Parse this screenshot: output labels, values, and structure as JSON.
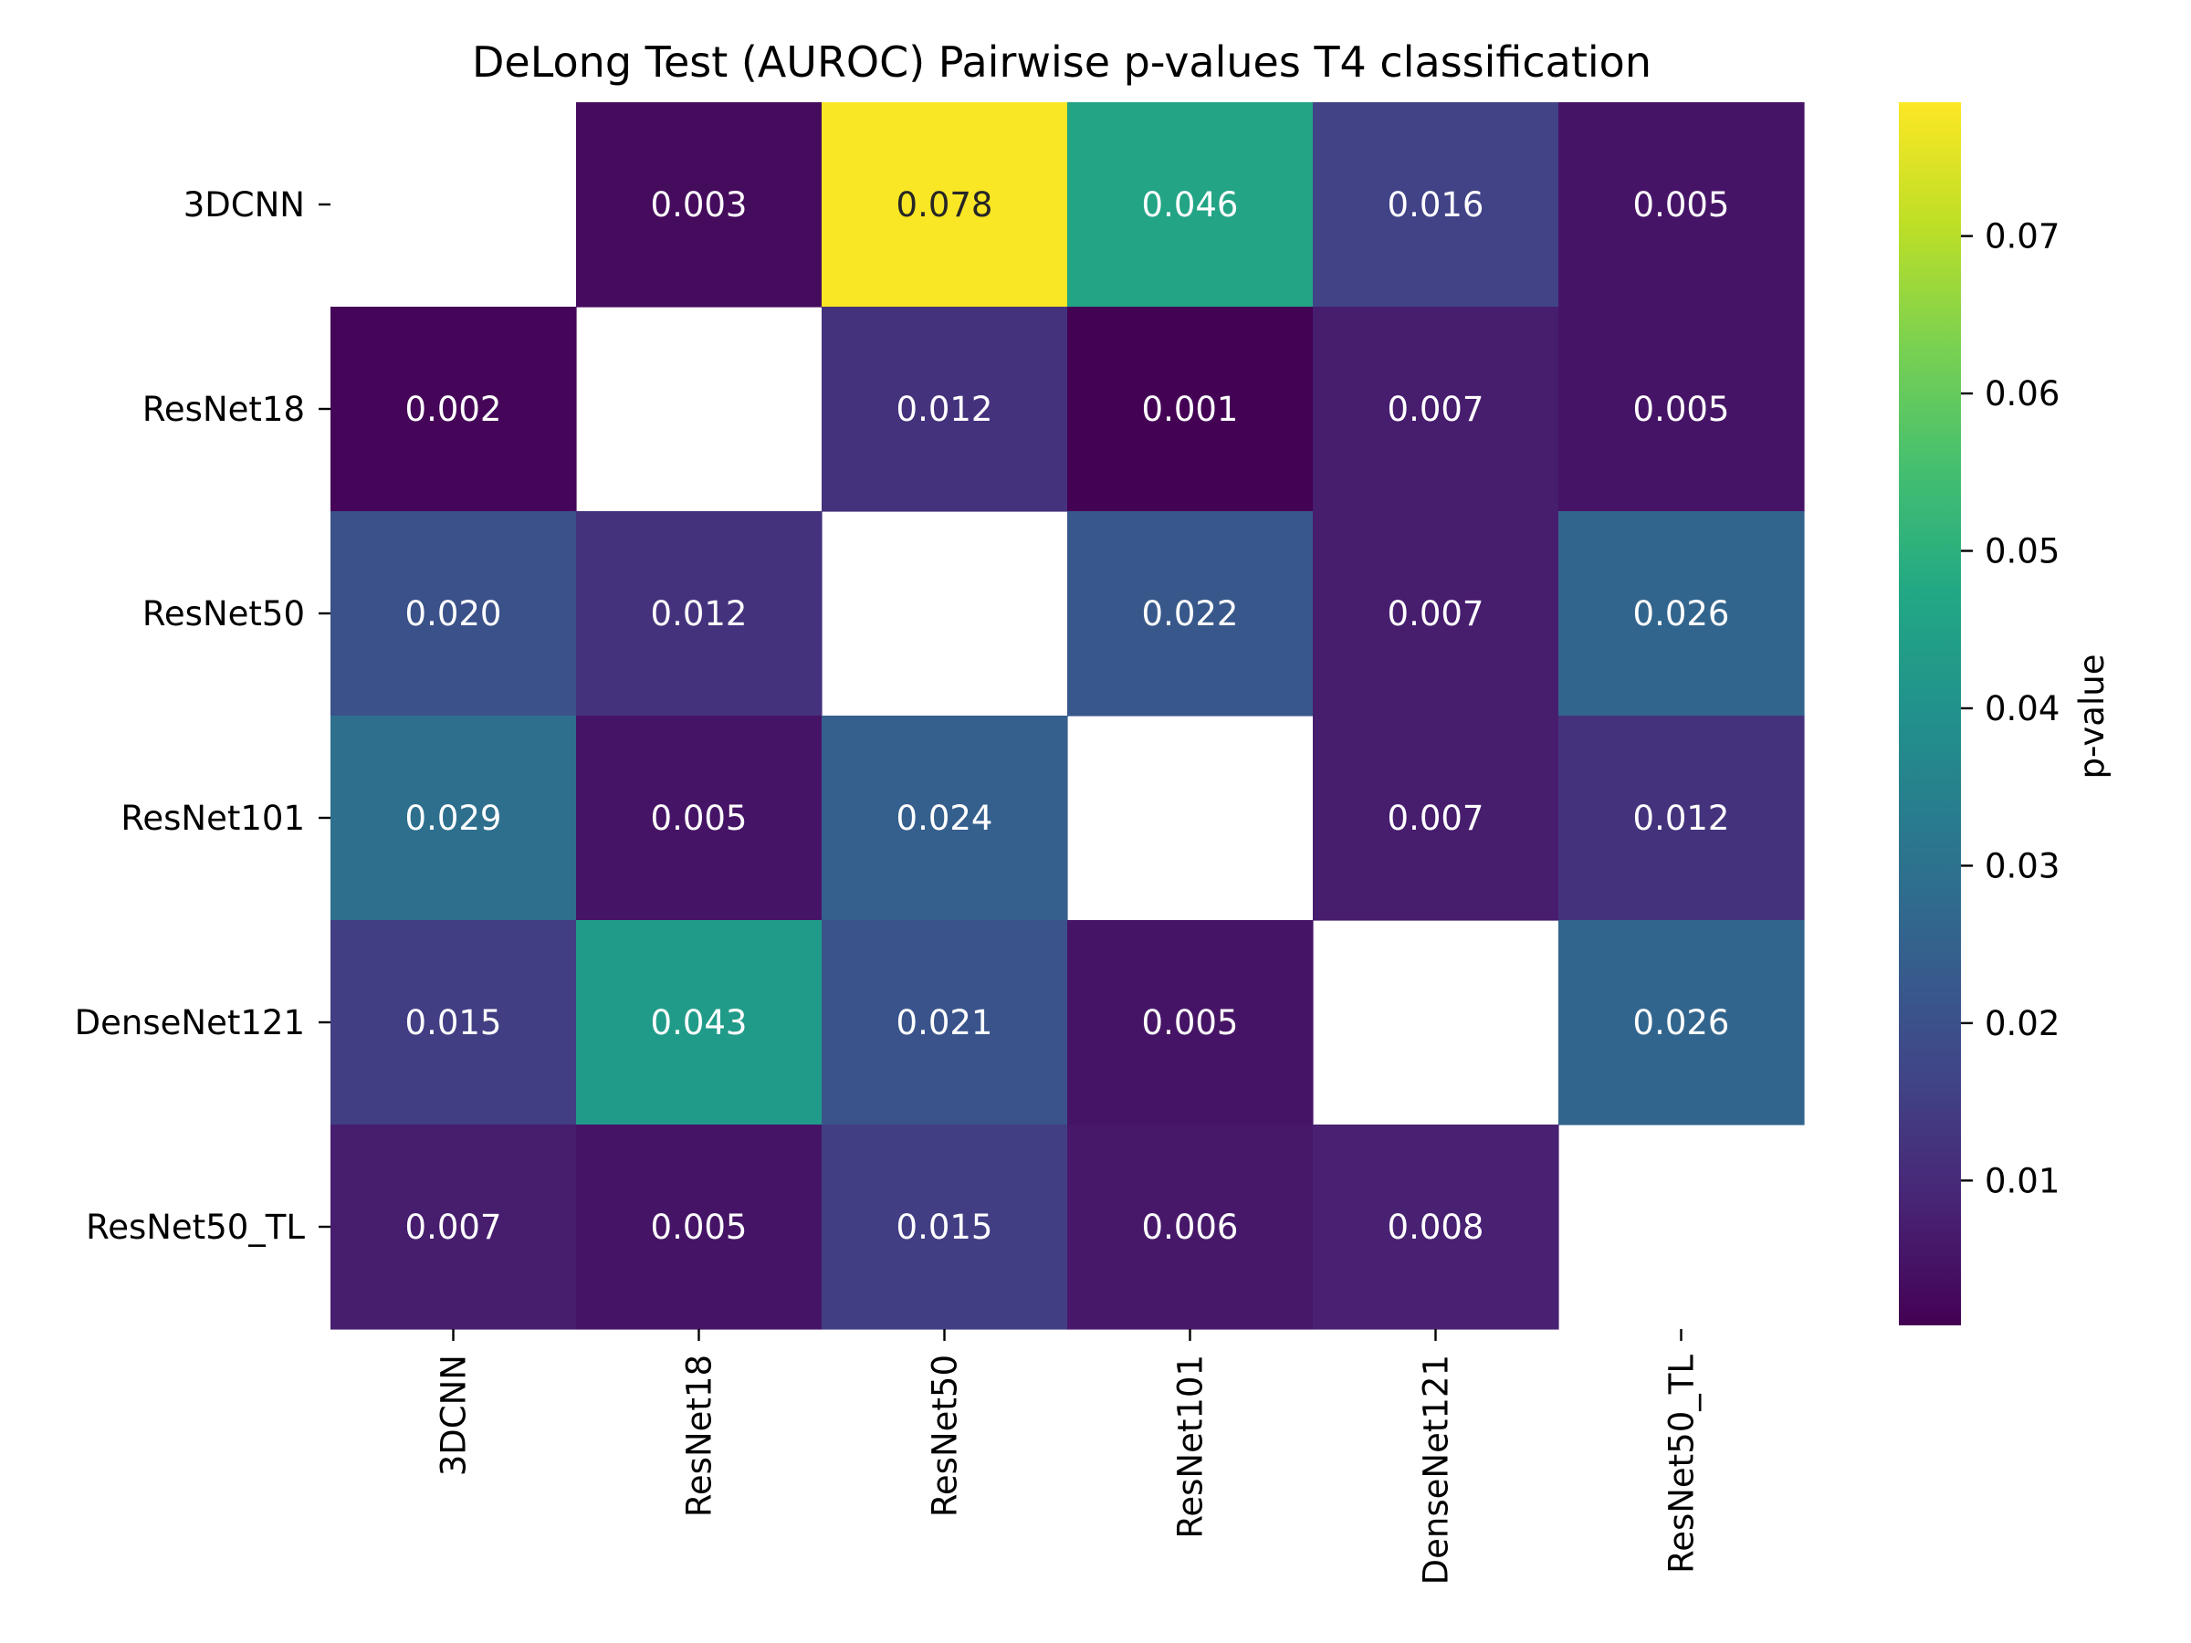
{
  "chart_data": {
    "type": "heatmap",
    "title": "DeLong Test (AUROC) Pairwise p-values T4 classification",
    "xlabel": "",
    "ylabel": "",
    "rows": [
      "3DCNN",
      "ResNet18",
      "ResNet50",
      "ResNet101",
      "DenseNet121",
      "ResNet50_TL"
    ],
    "columns": [
      "3DCNN",
      "ResNet18",
      "ResNet50",
      "ResNet101",
      "DenseNet121",
      "ResNet50_TL"
    ],
    "values": [
      [
        null,
        0.003,
        0.078,
        0.046,
        0.016,
        0.005
      ],
      [
        0.002,
        null,
        0.012,
        0.001,
        0.007,
        0.005
      ],
      [
        0.02,
        0.012,
        null,
        0.022,
        0.007,
        0.026
      ],
      [
        0.029,
        0.005,
        0.024,
        null,
        0.007,
        0.012
      ],
      [
        0.015,
        0.043,
        0.021,
        0.005,
        null,
        0.026
      ],
      [
        0.007,
        0.005,
        0.015,
        0.006,
        0.008,
        null
      ]
    ],
    "display_values": [
      [
        "",
        "0.003",
        "0.078",
        "0.046",
        "0.016",
        "0.005"
      ],
      [
        "0.002",
        "",
        "0.012",
        "0.001",
        "0.007",
        "0.005"
      ],
      [
        "0.020",
        "0.012",
        "",
        "0.022",
        "0.007",
        "0.026"
      ],
      [
        "0.029",
        "0.005",
        "0.024",
        "",
        "0.007",
        "0.012"
      ],
      [
        "0.015",
        "0.043",
        "0.021",
        "0.005",
        "",
        "0.026"
      ],
      [
        "0.007",
        "0.005",
        "0.015",
        "0.006",
        "0.008",
        ""
      ]
    ],
    "colormap": "viridis",
    "colorbar": {
      "label": "p-value",
      "range": [
        0.0008,
        0.0785
      ],
      "ticks": [
        0.01,
        0.02,
        0.03,
        0.04,
        0.05,
        0.06,
        0.07
      ],
      "tick_labels": [
        "0.01",
        "0.02",
        "0.03",
        "0.04",
        "0.05",
        "0.06",
        "0.07"
      ]
    },
    "missing_cells": "diagonal",
    "grid": false
  }
}
